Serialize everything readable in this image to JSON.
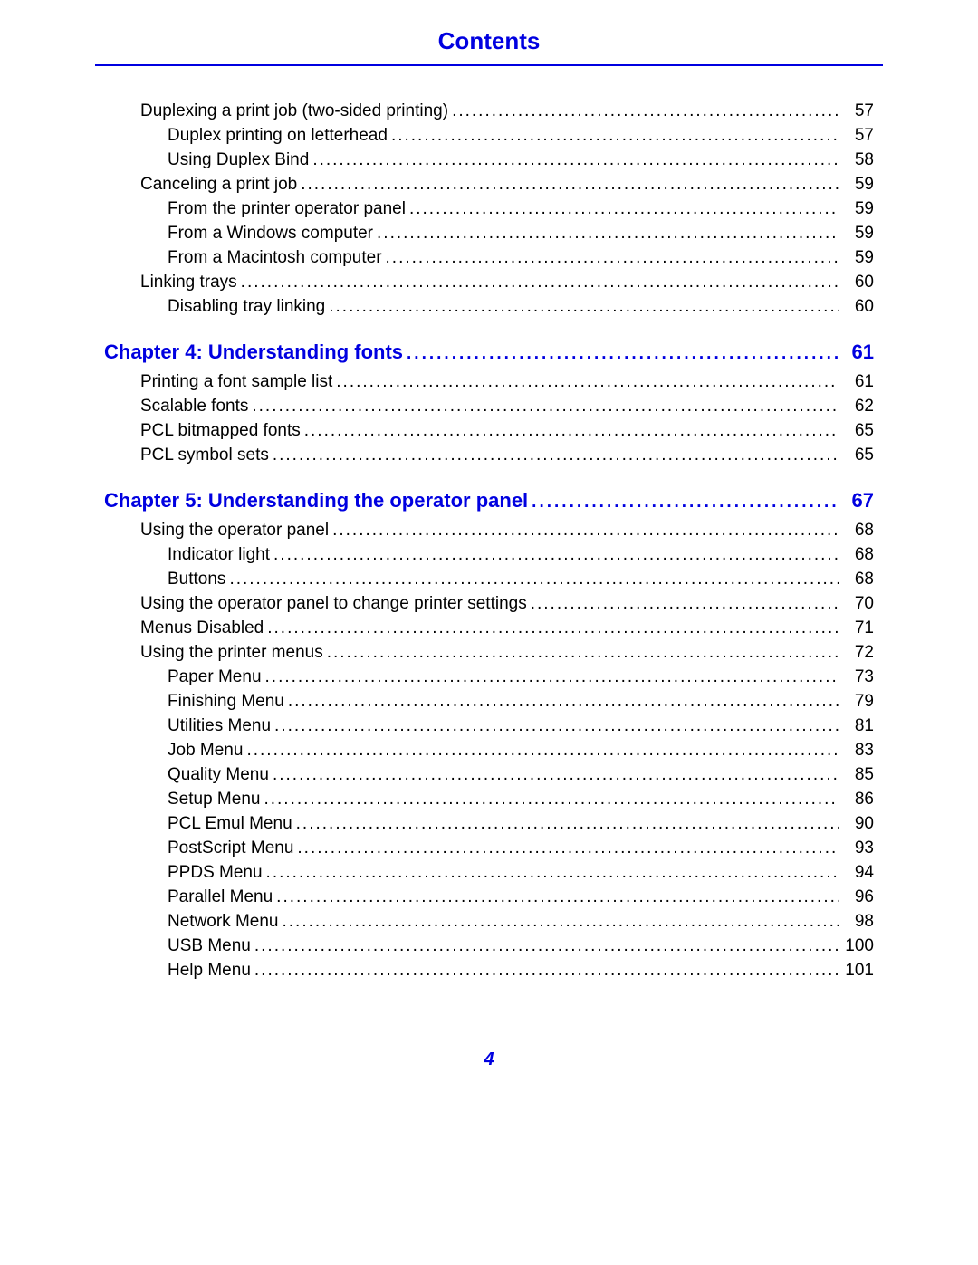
{
  "header": {
    "title": "Contents"
  },
  "colors": {
    "accent": "#0000e0",
    "text": "#000000",
    "rule": "#0000e0"
  },
  "typography": {
    "body_fontsize_pt": 14,
    "chapter_fontsize_pt": 17,
    "title_fontsize_pt": 20
  },
  "page_number": "4",
  "entries": [
    {
      "kind": "section",
      "name": "sec-duplexing",
      "label": "Duplexing a print job (two-sided printing)",
      "page": "57"
    },
    {
      "kind": "sub",
      "name": "sub-duplex-letterhead",
      "label": "Duplex printing on letterhead",
      "page": "57"
    },
    {
      "kind": "sub",
      "name": "sub-duplex-bind",
      "label": "Using Duplex Bind",
      "page": "58"
    },
    {
      "kind": "section",
      "name": "sec-canceling",
      "label": "Canceling a print job",
      "page": "59"
    },
    {
      "kind": "sub",
      "name": "sub-cancel-operator-panel",
      "label": "From the printer operator panel",
      "page": "59"
    },
    {
      "kind": "sub",
      "name": "sub-cancel-windows",
      "label": "From a Windows computer",
      "page": "59"
    },
    {
      "kind": "sub",
      "name": "sub-cancel-mac",
      "label": "From a Macintosh computer",
      "page": "59"
    },
    {
      "kind": "section",
      "name": "sec-linking-trays",
      "label": "Linking trays",
      "page": "60"
    },
    {
      "kind": "sub",
      "name": "sub-disable-tray-linking",
      "label": "Disabling tray linking",
      "page": "60"
    },
    {
      "kind": "chapter",
      "name": "chapter-4",
      "label": "Chapter 4:  Understanding fonts",
      "page": "61"
    },
    {
      "kind": "section",
      "name": "sec-font-sample",
      "label": "Printing a font sample list",
      "page": "61"
    },
    {
      "kind": "section",
      "name": "sec-scalable-fonts",
      "label": "Scalable fonts",
      "page": "62"
    },
    {
      "kind": "section",
      "name": "sec-pcl-bitmapped",
      "label": "PCL bitmapped fonts",
      "page": "65"
    },
    {
      "kind": "section",
      "name": "sec-pcl-symbol",
      "label": "PCL symbol sets",
      "page": "65"
    },
    {
      "kind": "chapter",
      "name": "chapter-5",
      "label": "Chapter 5:  Understanding the operator panel",
      "page": "67"
    },
    {
      "kind": "section",
      "name": "sec-using-operator-panel",
      "label": "Using the operator panel",
      "page": "68"
    },
    {
      "kind": "sub",
      "name": "sub-indicator-light",
      "label": "Indicator light",
      "page": "68"
    },
    {
      "kind": "sub",
      "name": "sub-buttons",
      "label": "Buttons",
      "page": "68"
    },
    {
      "kind": "section",
      "name": "sec-change-settings",
      "label": "Using the operator panel to change printer settings",
      "page": "70"
    },
    {
      "kind": "section",
      "name": "sec-menus-disabled",
      "label": "Menus Disabled",
      "page": "71"
    },
    {
      "kind": "section",
      "name": "sec-using-printer-menus",
      "label": "Using the printer menus",
      "page": "72"
    },
    {
      "kind": "sub",
      "name": "sub-paper-menu",
      "label": "Paper Menu",
      "page": "73"
    },
    {
      "kind": "sub",
      "name": "sub-finishing-menu",
      "label": "Finishing Menu",
      "page": "79"
    },
    {
      "kind": "sub",
      "name": "sub-utilities-menu",
      "label": "Utilities Menu",
      "page": "81"
    },
    {
      "kind": "sub",
      "name": "sub-job-menu",
      "label": "Job Menu",
      "page": "83"
    },
    {
      "kind": "sub",
      "name": "sub-quality-menu",
      "label": "Quality Menu",
      "page": "85"
    },
    {
      "kind": "sub",
      "name": "sub-setup-menu",
      "label": "Setup Menu",
      "page": "86"
    },
    {
      "kind": "sub",
      "name": "sub-pcl-emul-menu",
      "label": "PCL Emul Menu",
      "page": "90"
    },
    {
      "kind": "sub",
      "name": "sub-postscript-menu",
      "label": "PostScript Menu",
      "page": "93"
    },
    {
      "kind": "sub",
      "name": "sub-ppds-menu",
      "label": "PPDS Menu",
      "page": "94"
    },
    {
      "kind": "sub",
      "name": "sub-parallel-menu",
      "label": "Parallel Menu",
      "page": "96"
    },
    {
      "kind": "sub",
      "name": "sub-network-menu",
      "label": "Network Menu",
      "page": "98"
    },
    {
      "kind": "sub",
      "name": "sub-usb-menu",
      "label": "USB Menu",
      "page": "100"
    },
    {
      "kind": "sub",
      "name": "sub-help-menu",
      "label": "Help Menu",
      "page": "101"
    }
  ]
}
